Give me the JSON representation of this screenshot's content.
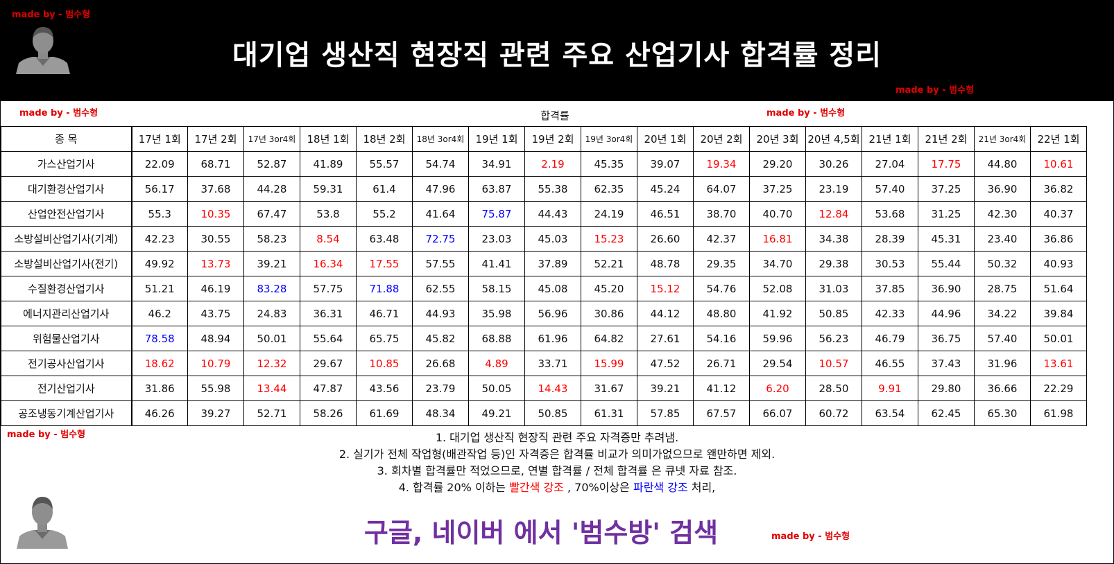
{
  "header": {
    "title": "대기업 생산직 현장직 관련 주요 산업기사 합격률 정리"
  },
  "watermark": {
    "prefix": "made by - ",
    "name": "범수형"
  },
  "table": {
    "caption": "합격률",
    "columns": [
      "종 목",
      "17년 1회",
      "17년 2회",
      "17년 3or4회",
      "18년 1회",
      "18년 2회",
      "18년 3or4회",
      "19년 1회",
      "19년 2회",
      "19년 3or4회",
      "20년 1회",
      "20년 2회",
      "20년 3회",
      "20년 4,5회",
      "21년 1회",
      "21년 2회",
      "21년 3or4회",
      "22년 1회"
    ],
    "rows": [
      {
        "name": "가스산업기사",
        "values": [
          "22.09",
          "68.71",
          "52.87",
          "41.89",
          "55.57",
          "54.74",
          "34.91",
          "2.19",
          "45.35",
          "39.07",
          "19.34",
          "29.20",
          "30.26",
          "27.04",
          "17.75",
          "44.80",
          "10.61"
        ]
      },
      {
        "name": "대기환경산업기사",
        "values": [
          "56.17",
          "37.68",
          "44.28",
          "59.31",
          "61.4",
          "47.96",
          "63.87",
          "55.38",
          "62.35",
          "45.24",
          "64.07",
          "37.25",
          "23.19",
          "57.40",
          "37.25",
          "36.90",
          "36.82"
        ]
      },
      {
        "name": "산업안전산업기사",
        "values": [
          "55.3",
          "10.35",
          "67.47",
          "53.8",
          "55.2",
          "41.64",
          "75.87",
          "44.43",
          "24.19",
          "46.51",
          "38.70",
          "40.70",
          "12.84",
          "53.68",
          "31.25",
          "42.30",
          "40.37"
        ]
      },
      {
        "name": "소방설비산업기사(기계)",
        "values": [
          "42.23",
          "30.55",
          "58.23",
          "8.54",
          "63.48",
          "72.75",
          "23.03",
          "45.03",
          "15.23",
          "26.60",
          "42.37",
          "16.81",
          "34.38",
          "28.39",
          "45.31",
          "23.40",
          "36.86"
        ]
      },
      {
        "name": "소방설비산업기사(전기)",
        "values": [
          "49.92",
          "13.73",
          "39.21",
          "16.34",
          "17.55",
          "57.55",
          "41.41",
          "37.89",
          "52.21",
          "48.78",
          "29.35",
          "34.70",
          "29.38",
          "30.53",
          "55.44",
          "50.32",
          "40.93"
        ]
      },
      {
        "name": "수질환경산업기사",
        "values": [
          "51.21",
          "46.19",
          "83.28",
          "57.75",
          "71.88",
          "62.55",
          "58.15",
          "45.08",
          "45.20",
          "15.12",
          "54.76",
          "52.08",
          "31.03",
          "37.85",
          "36.90",
          "28.75",
          "51.64"
        ]
      },
      {
        "name": "에너지관리산업기사",
        "values": [
          "46.2",
          "43.75",
          "24.83",
          "36.31",
          "46.71",
          "44.93",
          "35.98",
          "56.96",
          "30.86",
          "44.12",
          "48.80",
          "41.92",
          "50.85",
          "42.33",
          "44.96",
          "34.22",
          "39.84"
        ]
      },
      {
        "name": "위험물산업기사",
        "values": [
          "78.58",
          "48.94",
          "50.01",
          "55.64",
          "65.75",
          "45.82",
          "68.88",
          "61.96",
          "64.82",
          "27.61",
          "54.16",
          "59.96",
          "56.23",
          "46.79",
          "36.75",
          "57.40",
          "50.01"
        ]
      },
      {
        "name": "전기공사산업기사",
        "values": [
          "18.62",
          "10.79",
          "12.32",
          "29.67",
          "10.85",
          "26.68",
          "4.89",
          "33.71",
          "15.99",
          "47.52",
          "26.71",
          "29.54",
          "10.57",
          "46.55",
          "37.43",
          "31.96",
          "13.61"
        ]
      },
      {
        "name": "전기산업기사",
        "values": [
          "31.86",
          "55.98",
          "13.44",
          "47.87",
          "43.56",
          "23.79",
          "50.05",
          "14.43",
          "31.67",
          "39.21",
          "41.12",
          "6.20",
          "28.50",
          "9.91",
          "29.80",
          "36.66",
          "22.29"
        ]
      },
      {
        "name": "공조냉동기계산업기사",
        "values": [
          "46.26",
          "39.27",
          "52.71",
          "58.26",
          "61.69",
          "48.34",
          "49.21",
          "50.85",
          "61.31",
          "57.85",
          "67.57",
          "66.07",
          "60.72",
          "63.54",
          "62.45",
          "65.30",
          "61.98"
        ]
      }
    ]
  },
  "notes": {
    "line1": "1. 대기업 생산직 현장직 관련 주요 자격증만 추려냄.",
    "line2": "2. 실기가 전체 작업형(배관작업 등)인 자격증은 합격률 비교가 의미가없으므로 왠만하면 제외.",
    "line3": "3. 회차별 합격률만 적었으므로, 연별 합격률 / 전체 합격률 은 큐넷 자료 참조.",
    "line4_a": "4. 합격률 20% 이하는 ",
    "line4_red": "빨간색 강조",
    "line4_b": " , 70%이상은 ",
    "line4_blue": "파란색 강조",
    "line4_c": " 처리,"
  },
  "search": {
    "text": "구글, 네이버 에서 '범수방' 검색"
  },
  "colors": {
    "low": "#ff0000",
    "high": "#0000ff",
    "search": "#7030a0",
    "watermark": "#e00000"
  }
}
